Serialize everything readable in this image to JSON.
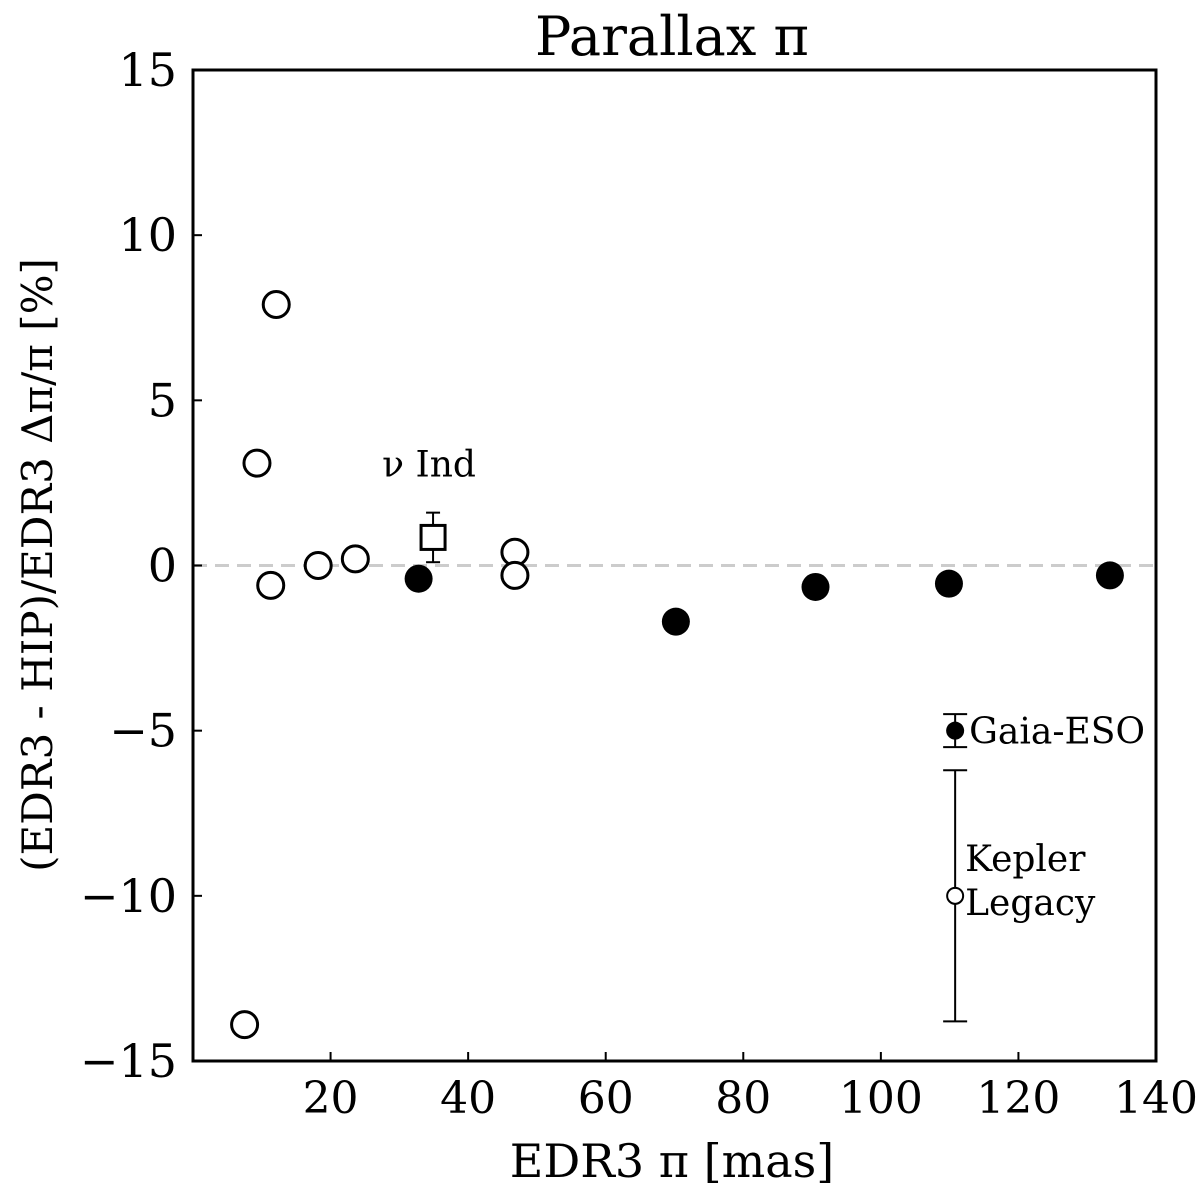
{
  "chart_data": {
    "type": "scatter",
    "title": "Parallax π",
    "xlabel": "EDR3 π [mas]",
    "ylabel": "(EDR3 - HIP)/EDR3 Δπ/π [%]",
    "xlim": [
      0,
      140
    ],
    "ylim": [
      -15,
      15
    ],
    "xticks": [
      20,
      40,
      60,
      80,
      100,
      120,
      140
    ],
    "xtick_labels": [
      "20",
      "40",
      "60",
      "80",
      "100",
      "120",
      "140"
    ],
    "yticks": [
      -15,
      -10,
      -5,
      0,
      5,
      10,
      15
    ],
    "ytick_labels": [
      "−15",
      "−10",
      "−5",
      "0",
      "5",
      "10",
      "15"
    ],
    "reference_line": {
      "y": 0,
      "style": "dashed",
      "color": "#cccccc"
    },
    "series": [
      {
        "marker": "open-circle",
        "points": [
          {
            "x": 7.5,
            "y": -13.9
          },
          {
            "x": 9.3,
            "y": 3.1
          },
          {
            "x": 11.3,
            "y": -0.6
          },
          {
            "x": 12.1,
            "y": 7.9
          },
          {
            "x": 18.2,
            "y": 0.0
          },
          {
            "x": 23.6,
            "y": 0.2
          },
          {
            "x": 46.8,
            "y": 0.4
          },
          {
            "x": 46.8,
            "y": -0.3
          }
        ]
      },
      {
        "marker": "filled-circle",
        "points": [
          {
            "x": 32.8,
            "y": -0.4
          },
          {
            "x": 70.2,
            "y": -1.7
          },
          {
            "x": 90.5,
            "y": -0.65
          },
          {
            "x": 109.9,
            "y": -0.55
          },
          {
            "x": 133.3,
            "y": -0.3
          }
        ]
      },
      {
        "marker": "open-square",
        "points": [
          {
            "x": 34.9,
            "y": 0.85,
            "yerr_low": 0.75,
            "yerr_high": 0.75,
            "label": "ν Ind"
          }
        ]
      }
    ],
    "legend_errorbars": [
      {
        "label": "Gaia-ESO",
        "marker": "filled-circle",
        "x": 110.8,
        "y": -5.0,
        "yerr": 0.5
      },
      {
        "label_lines": [
          "Kepler",
          "Legacy"
        ],
        "marker": "open-circle",
        "x": 110.8,
        "y": -10.0,
        "yerr": 3.8
      }
    ]
  }
}
